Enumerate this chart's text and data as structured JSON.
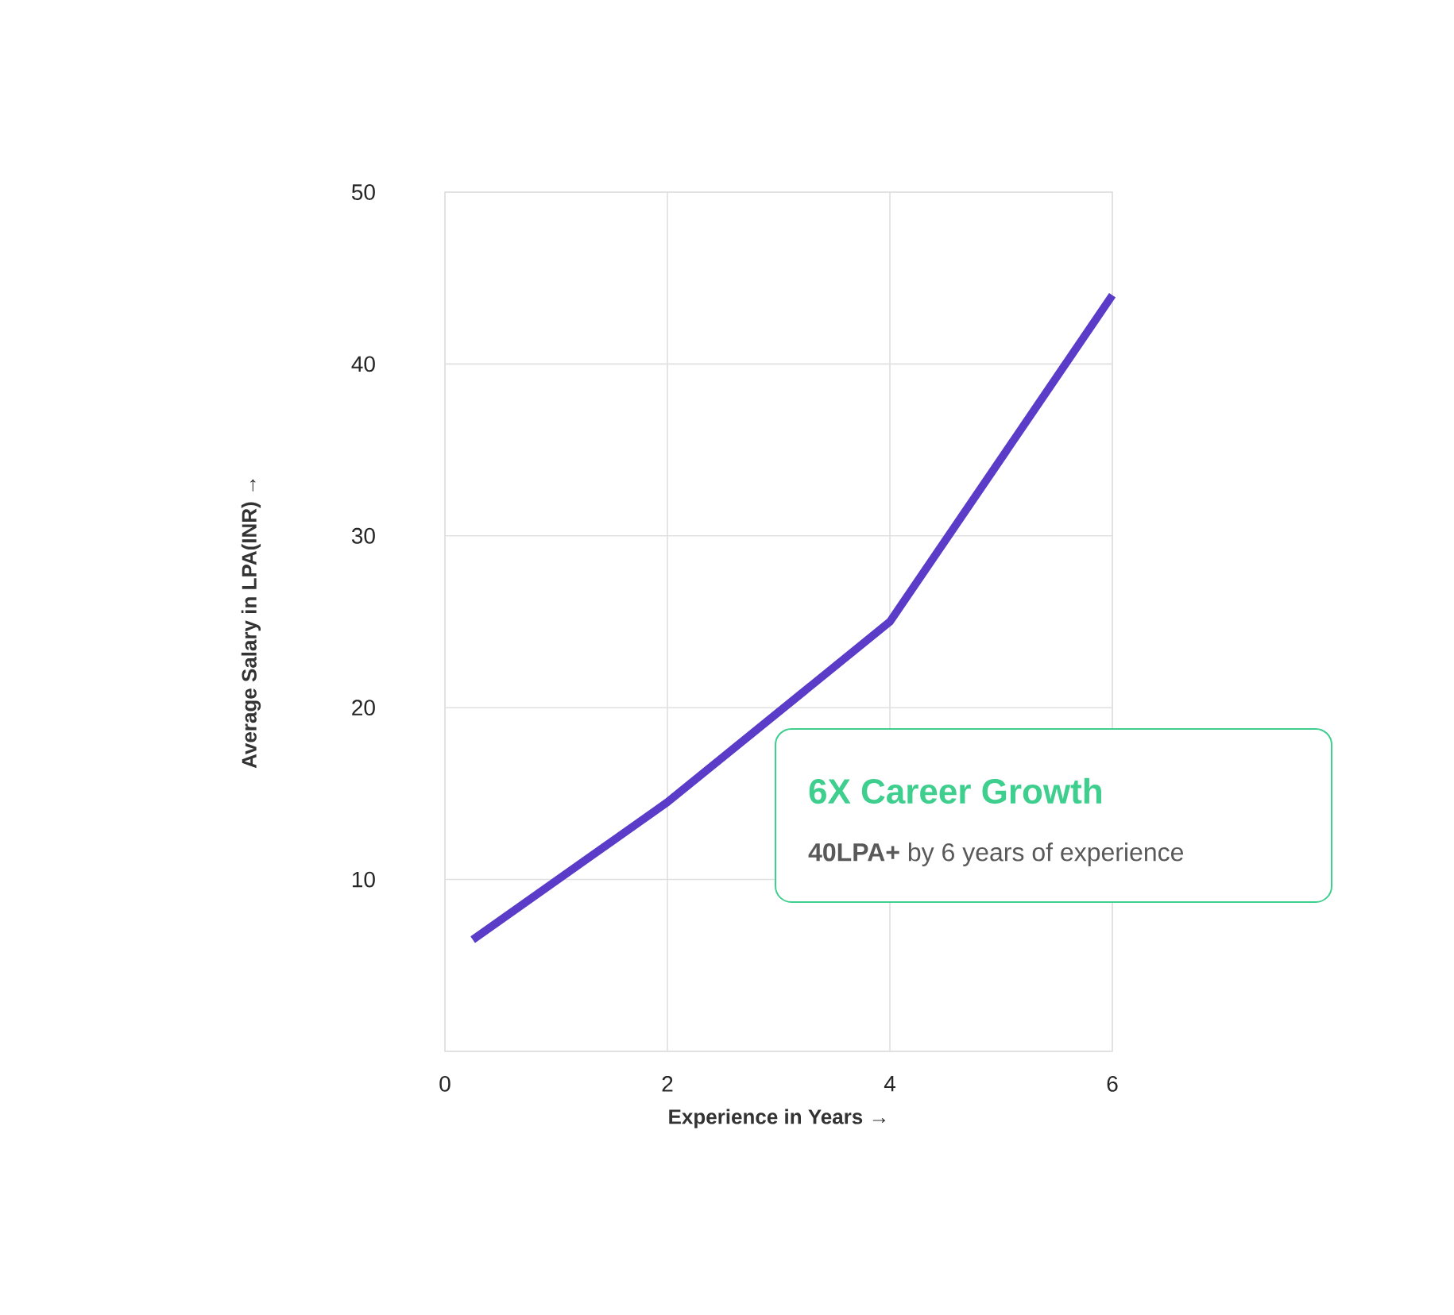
{
  "chart_data": {
    "type": "line",
    "x": [
      0.25,
      2,
      4,
      6
    ],
    "series": [
      {
        "color": "#5a3cc8",
        "values": [
          6.5,
          14.5,
          25,
          44
        ]
      }
    ],
    "xlim": [
      0,
      6
    ],
    "ylim": [
      0,
      50
    ],
    "xticks": [
      0,
      2,
      4,
      6
    ],
    "yticks": [
      {
        "value": 0,
        "label": null
      },
      10,
      20,
      30,
      40,
      50
    ],
    "xlabel": "Experience in Years →",
    "ylabel": "Average Salary in LPA(INR) →",
    "grid": true,
    "marker": "none",
    "line_style": "solid",
    "annotations": [
      "**6X** Career Growth",
      "**40LPA+** by 6 years of experience"
    ]
  }
}
